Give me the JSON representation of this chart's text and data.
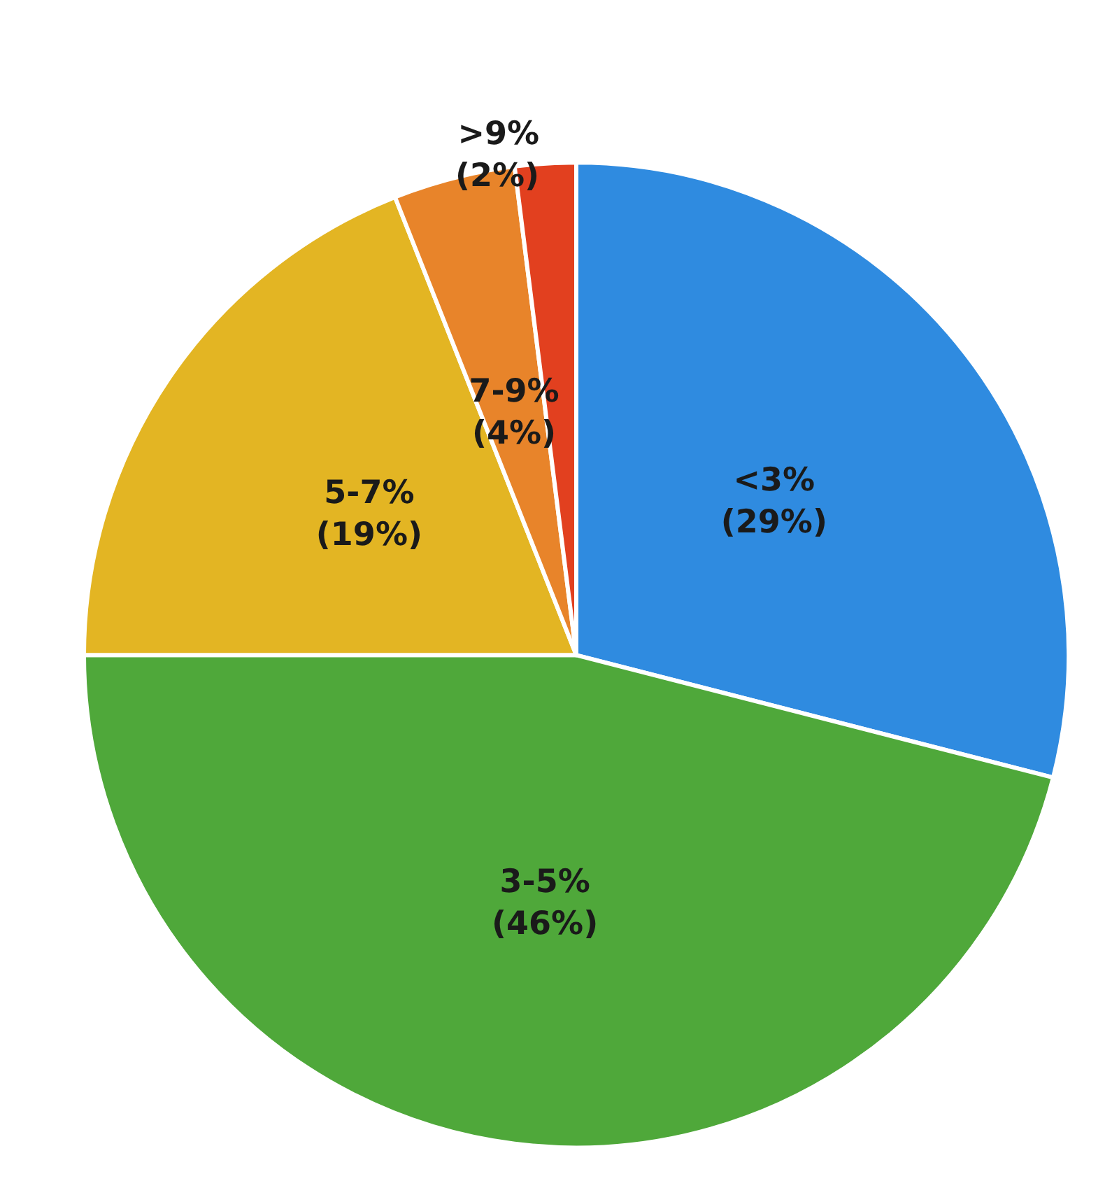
{
  "chart_data": {
    "type": "pie",
    "categories": [
      "<3%",
      "3-5%",
      "5-7%",
      "7-9%",
      ">9%"
    ],
    "values": [
      29,
      46,
      19,
      4,
      2
    ],
    "value_labels": [
      "(29%)",
      "(46%)",
      "(19%)",
      "(4%)",
      "(2%)"
    ],
    "colors": [
      "#2f8be0",
      "#4fa83a",
      "#e3b523",
      "#e8842a",
      "#e2401f"
    ],
    "legend": false
  }
}
